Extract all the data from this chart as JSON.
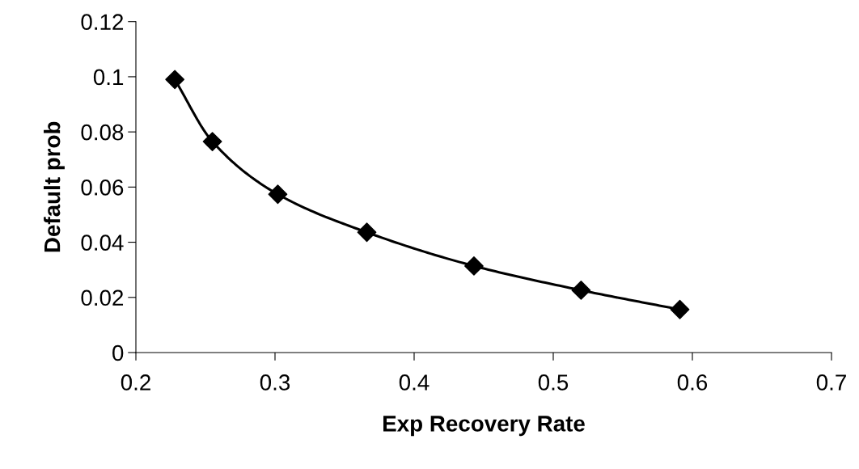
{
  "chart_data": {
    "type": "line",
    "xlabel": "Exp Recovery Rate",
    "ylabel": "Default prob",
    "x": [
      0.228,
      0.255,
      0.302,
      0.366,
      0.443,
      0.52,
      0.591
    ],
    "series": [
      {
        "color": "#000000",
        "values": [
          0.099,
          0.0765,
          0.0574,
          0.0436,
          0.0314,
          0.0226,
          0.0156
        ]
      }
    ],
    "xlim": [
      0.2,
      0.7
    ],
    "xticks": [
      0.2,
      0.3,
      0.4,
      0.5,
      0.6,
      0.7
    ],
    "ylim": [
      0,
      0.12
    ],
    "yticks": [
      0,
      0.02,
      0.04,
      0.06,
      0.08,
      0.1,
      0.12
    ],
    "marker": "diamond",
    "line_style": "solid",
    "grid": false,
    "legend": false
  }
}
